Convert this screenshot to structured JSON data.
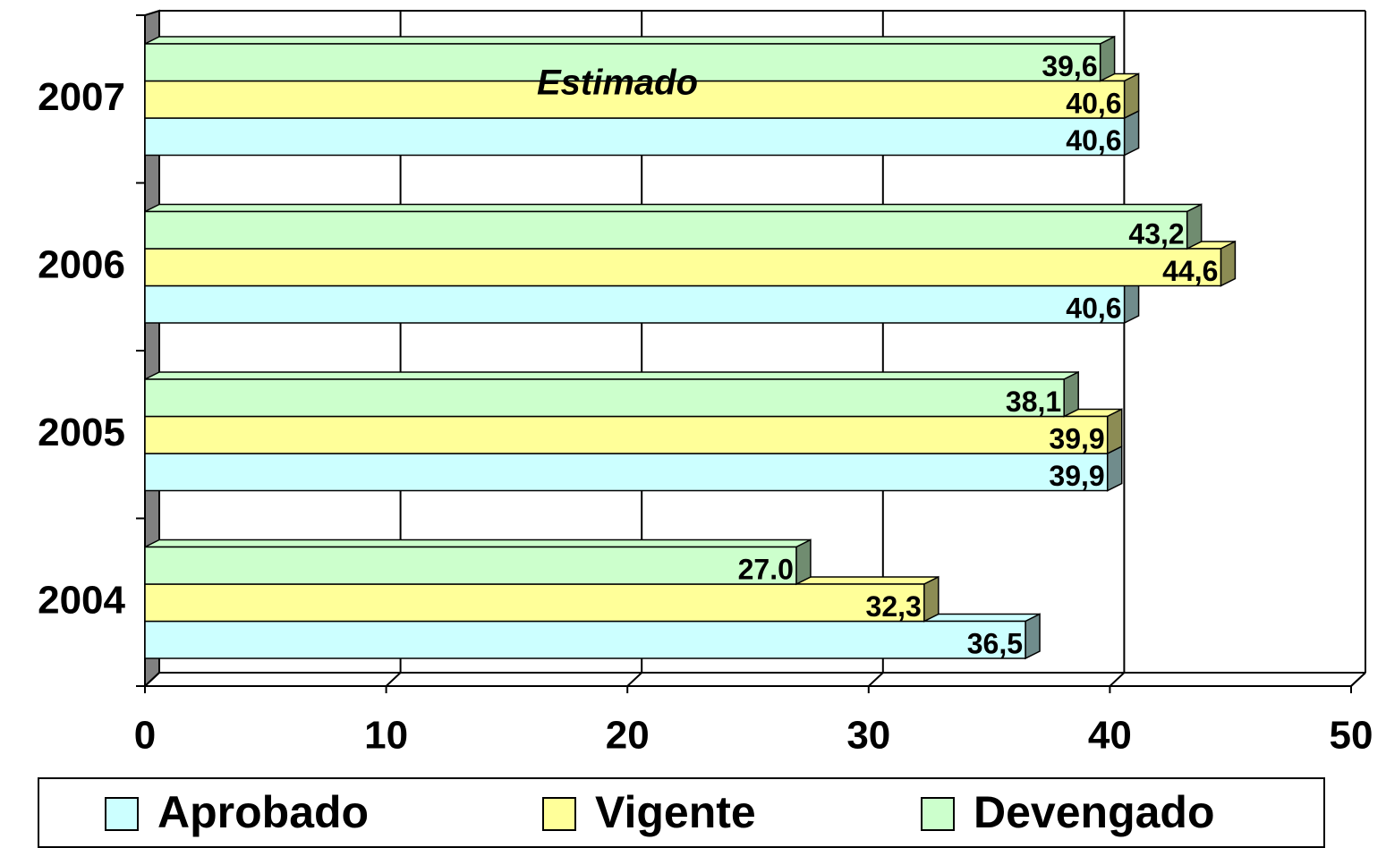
{
  "chart_data": {
    "type": "bar",
    "orientation": "horizontal",
    "categories": [
      "2004",
      "2005",
      "2006",
      "2007"
    ],
    "series": [
      {
        "name": "Aprobado",
        "color": "#ccffff",
        "values": [
          36.5,
          39.9,
          40.6,
          40.6
        ],
        "value_labels": [
          "36,5",
          "39,9",
          "40,6",
          "40,6"
        ]
      },
      {
        "name": "Vigente",
        "color": "#ffff99",
        "values": [
          32.3,
          39.9,
          44.6,
          40.6
        ],
        "value_labels": [
          "32,3",
          "39,9",
          "44,6",
          "40,6"
        ]
      },
      {
        "name": "Devengado",
        "color": "#ccffcc",
        "values": [
          27.0,
          38.1,
          43.2,
          39.6
        ],
        "value_labels": [
          "27.0",
          "38,1",
          "43,2",
          "39,6"
        ]
      }
    ],
    "annotations": [
      "Estimado"
    ],
    "xlim": [
      0,
      50
    ],
    "xticks": [
      0,
      10,
      20,
      30,
      40,
      50
    ],
    "grid": true,
    "legend": "bottom"
  }
}
